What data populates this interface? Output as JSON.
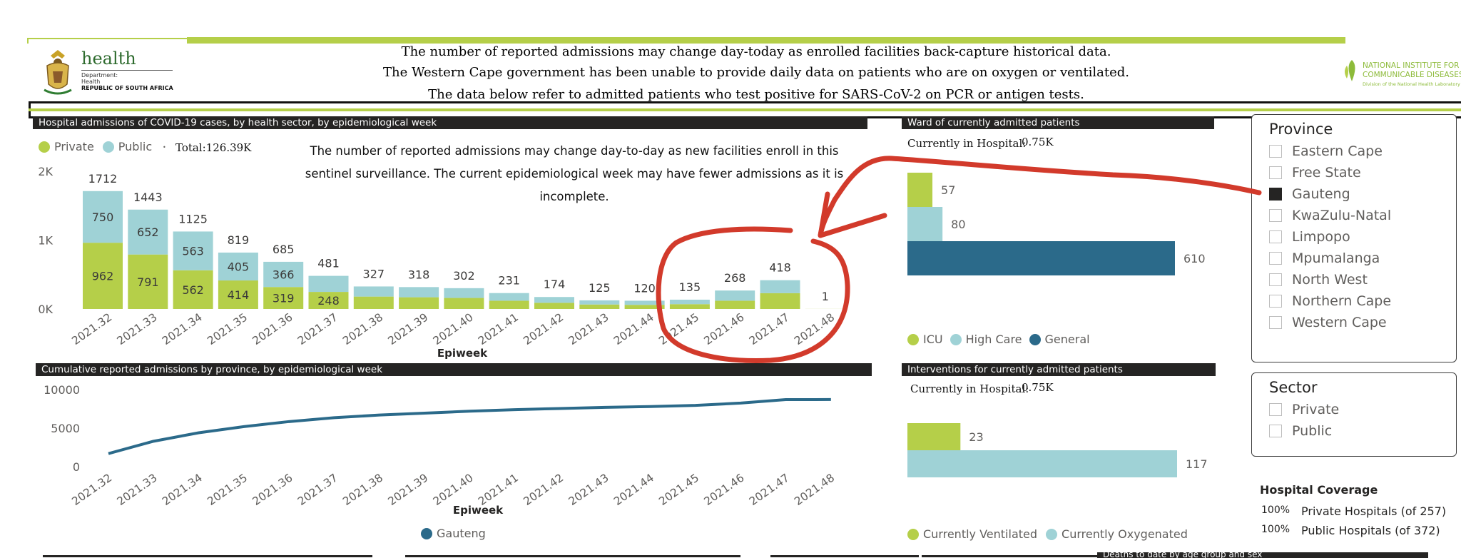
{
  "header": {
    "logo_word": "health",
    "logo_lines": [
      "Department:",
      "Health",
      "REPUBLIC OF SOUTH AFRICA"
    ],
    "notice_lines": [
      "The number of reported admissions may change day-today as enrolled facilities back-capture historical data.",
      "The Western Cape government has been unable to provide daily data on patients who are on oxygen or ventilated.",
      "The data below refer to admitted patients who test positive for SARS-CoV-2 on PCR or antigen tests."
    ],
    "nicd_lines": [
      "NATIONAL INSTITUTE FOR",
      "COMMUNICABLE DISEASES",
      "Division of the National Health Laboratory Service"
    ]
  },
  "colors": {
    "private": "#b5cf49",
    "public": "#9fd2d6",
    "general": "#2b6a8a",
    "line": "#2b6a8a",
    "annotation": "#d23a2b",
    "dark": "#252423"
  },
  "admissions": {
    "title": "Hospital admissions of COVID-19 cases, by health sector, by epidemiological week",
    "legend_private": "Private",
    "legend_public": "Public",
    "total": "Total:126.39K",
    "note": "The number of reported admissions may change day-to-day as new facilities enroll in this sentinel surveillance. The current epidemiological week may have fewer admissions as it is incomplete.",
    "xlabel": "Epiweek"
  },
  "ward": {
    "title": "Ward of currently admitted patients",
    "current_label": "Currently in Hospital:",
    "current_value": "0.75K",
    "legend": [
      "ICU",
      "High Care",
      "General"
    ]
  },
  "cumulative": {
    "title": "Cumulative reported admissions by province, by epidemiological week",
    "xlabel": "Epiweek",
    "legend": "Gauteng"
  },
  "interventions": {
    "title": "Interventions for currently admitted patients",
    "current_label": "Currently in Hospital:",
    "current_value": "0.75K",
    "legend": [
      "Currently Ventilated",
      "Currently Oxygenated"
    ]
  },
  "province_slicer": {
    "title": "Province",
    "items": [
      {
        "label": "Eastern Cape",
        "checked": false
      },
      {
        "label": "Free State",
        "checked": false
      },
      {
        "label": "Gauteng",
        "checked": true
      },
      {
        "label": "KwaZulu-Natal",
        "checked": false
      },
      {
        "label": "Limpopo",
        "checked": false
      },
      {
        "label": "Mpumalanga",
        "checked": false
      },
      {
        "label": "North West",
        "checked": false
      },
      {
        "label": "Northern Cape",
        "checked": false
      },
      {
        "label": "Western Cape",
        "checked": false
      }
    ]
  },
  "sector_slicer": {
    "title": "Sector",
    "items": [
      {
        "label": "Private",
        "checked": false
      },
      {
        "label": "Public",
        "checked": false
      }
    ]
  },
  "coverage": {
    "title": "Hospital Coverage",
    "rows": [
      {
        "pct": "100%",
        "label": "Private Hospitals (of 257)"
      },
      {
        "pct": "100%",
        "label": "Public Hospitals (of 372)"
      }
    ]
  },
  "footer": {
    "partial_title": "Deaths to date by age group and sex"
  },
  "chart_data": [
    {
      "type": "bar",
      "stacked": true,
      "categories": [
        "2021.32",
        "2021.33",
        "2021.34",
        "2021.35",
        "2021.36",
        "2021.37",
        "2021.38",
        "2021.39",
        "2021.40",
        "2021.41",
        "2021.42",
        "2021.43",
        "2021.44",
        "2021.45",
        "2021.46",
        "2021.47",
        "2021.48"
      ],
      "series": [
        {
          "name": "Private",
          "values": [
            962,
            791,
            562,
            414,
            319,
            248,
            180,
            170,
            160,
            120,
            90,
            65,
            60,
            70,
            120,
            230,
            1
          ]
        },
        {
          "name": "Public",
          "values": [
            750,
            652,
            563,
            405,
            366,
            233,
            147,
            148,
            142,
            111,
            84,
            60,
            60,
            65,
            148,
            188,
            0
          ]
        }
      ],
      "totals": [
        1712,
        1443,
        1125,
        819,
        685,
        481,
        327,
        318,
        302,
        231,
        174,
        125,
        120,
        135,
        268,
        418,
        1
      ],
      "segment_labels": {
        "Private": [
          "962",
          "791",
          "562",
          "414",
          "319",
          "248",
          "",
          "",
          "",
          "",
          "",
          "",
          "",
          "",
          "",
          "",
          ""
        ],
        "Public": [
          "750",
          "652",
          "563",
          "405",
          "366",
          "",
          "",
          "",
          "",
          "",
          "",
          "",
          "",
          "",
          "",
          "",
          ""
        ]
      },
      "yticks": [
        "0K",
        "1K",
        "2K"
      ],
      "ylim": [
        0,
        2000
      ],
      "xlabel": "Epiweek",
      "legend": "top-left"
    },
    {
      "type": "bar",
      "orientation": "horizontal",
      "categories": [
        "ICU",
        "High Care",
        "General"
      ],
      "values": [
        57,
        80,
        610
      ],
      "labels": [
        "57",
        "80",
        "610"
      ]
    },
    {
      "type": "line",
      "x": [
        "2021.32",
        "2021.33",
        "2021.34",
        "2021.35",
        "2021.36",
        "2021.37",
        "2021.38",
        "2021.39",
        "2021.40",
        "2021.41",
        "2021.42",
        "2021.43",
        "2021.44",
        "2021.45",
        "2021.46",
        "2021.47",
        "2021.48"
      ],
      "series": [
        {
          "name": "Gauteng",
          "values": [
            1700,
            3300,
            4400,
            5200,
            5850,
            6350,
            6700,
            6950,
            7200,
            7400,
            7550,
            7700,
            7800,
            7950,
            8250,
            8700,
            8710
          ]
        }
      ],
      "yticks": [
        "0",
        "5000",
        "10000"
      ],
      "ylim": [
        0,
        10000
      ],
      "xlabel": "Epiweek",
      "legend": "bottom"
    },
    {
      "type": "bar",
      "orientation": "horizontal",
      "categories": [
        "Currently Ventilated",
        "Currently Oxygenated"
      ],
      "values": [
        23,
        117
      ],
      "labels": [
        "23",
        "117"
      ]
    }
  ]
}
